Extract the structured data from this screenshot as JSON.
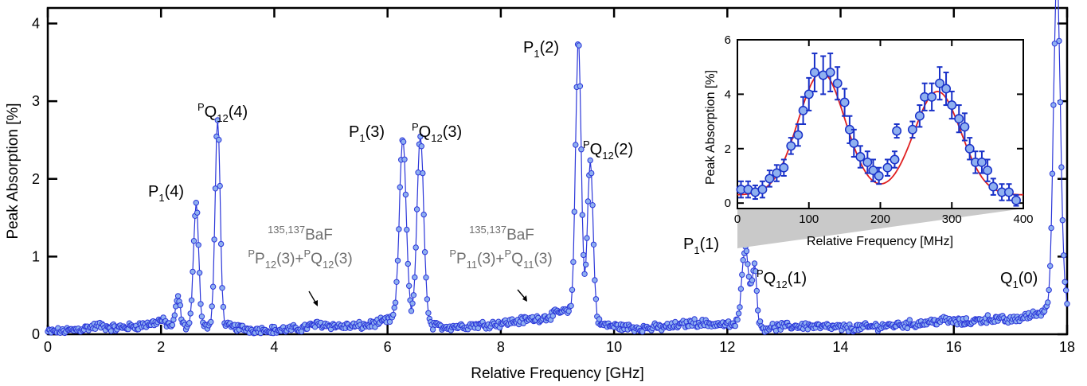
{
  "chart_data": [
    {
      "type": "line",
      "xlabel": "Relative Frequency [GHz]",
      "ylabel": "Peak Absorption [%]",
      "xlim": [
        0,
        18
      ],
      "ylim": [
        0,
        4.2
      ],
      "xticks": [
        "0",
        "2",
        "4",
        "6",
        "8",
        "10",
        "12",
        "14",
        "16",
        "18"
      ],
      "yticks": [
        "0",
        "1",
        "2",
        "3",
        "4"
      ],
      "grid": false,
      "line_color": "#2b36d9",
      "marker_fill": "#8fb0f0",
      "baseline": [
        [
          0.0,
          0.03
        ],
        [
          0.3,
          0.04
        ],
        [
          0.6,
          0.07
        ],
        [
          0.9,
          0.11
        ],
        [
          1.2,
          0.08
        ],
        [
          1.5,
          0.1
        ],
        [
          1.8,
          0.13
        ],
        [
          2.0,
          0.18
        ],
        [
          2.2,
          0.1
        ],
        [
          2.8,
          0.1
        ],
        [
          3.2,
          0.1
        ],
        [
          3.6,
          0.06
        ],
        [
          4.0,
          0.05
        ],
        [
          4.4,
          0.07
        ],
        [
          4.8,
          0.13
        ],
        [
          5.2,
          0.1
        ],
        [
          5.6,
          0.11
        ],
        [
          5.9,
          0.16
        ],
        [
          6.1,
          0.2
        ],
        [
          6.8,
          0.1
        ],
        [
          7.2,
          0.1
        ],
        [
          7.6,
          0.12
        ],
        [
          8.0,
          0.14
        ],
        [
          8.4,
          0.18
        ],
        [
          8.8,
          0.22
        ],
        [
          9.1,
          0.3
        ],
        [
          9.8,
          0.12
        ],
        [
          10.2,
          0.09
        ],
        [
          10.6,
          0.08
        ],
        [
          11.0,
          0.1
        ],
        [
          11.4,
          0.15
        ],
        [
          11.8,
          0.13
        ],
        [
          12.1,
          0.12
        ],
        [
          12.6,
          0.08
        ],
        [
          13.0,
          0.1
        ],
        [
          13.4,
          0.11
        ],
        [
          13.8,
          0.09
        ],
        [
          14.2,
          0.08
        ],
        [
          14.6,
          0.1
        ],
        [
          15.0,
          0.12
        ],
        [
          15.4,
          0.14
        ],
        [
          15.8,
          0.18
        ],
        [
          16.2,
          0.15
        ],
        [
          16.6,
          0.2
        ],
        [
          17.0,
          0.18
        ],
        [
          17.4,
          0.25
        ],
        [
          17.6,
          0.3
        ],
        [
          18.0,
          0.4
        ]
      ],
      "peaks": [
        {
          "x": 2.3,
          "height": 0.38,
          "width": 0.04
        },
        {
          "x": 2.62,
          "height": 1.62,
          "width": 0.045
        },
        {
          "x": 3.0,
          "height": 2.65,
          "width": 0.045
        },
        {
          "x": 6.27,
          "height": 2.35,
          "width": 0.06
        },
        {
          "x": 6.58,
          "height": 2.4,
          "width": 0.06
        },
        {
          "x": 9.37,
          "height": 3.55,
          "width": 0.05
        },
        {
          "x": 9.58,
          "height": 2.05,
          "width": 0.05
        },
        {
          "x": 12.32,
          "height": 1.05,
          "width": 0.06
        },
        {
          "x": 12.48,
          "height": 0.8,
          "width": 0.04
        },
        {
          "x": 17.82,
          "height": 4.3,
          "width": 0.06
        }
      ],
      "annotations": {
        "p1_4": {
          "main": "P",
          "sub": "1",
          "tail": "(4)"
        },
        "pq12_4": {
          "sup": "P",
          "main": "Q",
          "sub": "12",
          "tail": "(4)"
        },
        "p1_3": {
          "main": "P",
          "sub": "1",
          "tail": "(3)"
        },
        "pq12_3": {
          "sup": "P",
          "main": "Q",
          "sub": "12",
          "tail": "(3)"
        },
        "p1_2": {
          "main": "P",
          "sub": "1",
          "tail": "(2)"
        },
        "pq12_2": {
          "sup": "P",
          "main": "Q",
          "sub": "12",
          "tail": "(2)"
        },
        "p1_1": {
          "main": "P",
          "sub": "1",
          "tail": "(1)"
        },
        "pq12_1": {
          "sup": "P",
          "main": "Q",
          "sub": "12",
          "tail": "(1)"
        },
        "q1_0": {
          "main": "Q",
          "sub": "1",
          "tail": "(0)"
        },
        "bafA_iso": {
          "sup": "135,137",
          "main": "BaF"
        },
        "bafA_lines": {
          "sup1": "P",
          "p1": "P",
          "s1": "12",
          "mid": "(3)+",
          "sup2": "P",
          "q2": "Q",
          "s2": "12",
          "tail": "(3)"
        },
        "bafB_iso": {
          "sup": "135,137",
          "main": "BaF"
        },
        "bafB_lines": {
          "sup1": "P",
          "p1": "P",
          "s1": "11",
          "mid": "(3)+",
          "sup2": "P",
          "q2": "Q",
          "s2": "11",
          "tail": "(3)"
        }
      }
    },
    {
      "type": "scatter",
      "xlabel": "Relative Frequency [MHz]",
      "ylabel": "Peak Absorption [%]",
      "xlim": [
        0,
        400
      ],
      "ylim": [
        -0.2,
        6
      ],
      "xticks": [
        "0",
        "100",
        "200",
        "300",
        "400"
      ],
      "yticks": [
        "0",
        "2",
        "4",
        "6"
      ],
      "fit_color": "#e02020",
      "error_color": "#1830c8",
      "marker_fill": "#8fb0f0",
      "points": [
        [
          5,
          0.5,
          0.3
        ],
        [
          15,
          0.5,
          0.3
        ],
        [
          25,
          0.4,
          0.25
        ],
        [
          35,
          0.5,
          0.3
        ],
        [
          45,
          0.9,
          0.3
        ],
        [
          55,
          1.1,
          0.3
        ],
        [
          65,
          1.3,
          0.3
        ],
        [
          75,
          2.1,
          0.3
        ],
        [
          85,
          2.5,
          0.4
        ],
        [
          92,
          3.4,
          0.5
        ],
        [
          100,
          4.0,
          0.6
        ],
        [
          108,
          4.8,
          0.7
        ],
        [
          120,
          4.7,
          0.7
        ],
        [
          130,
          4.8,
          0.7
        ],
        [
          140,
          4.4,
          0.6
        ],
        [
          150,
          3.7,
          0.5
        ],
        [
          157,
          2.7,
          0.5
        ],
        [
          163,
          2.2,
          0.5
        ],
        [
          172,
          1.7,
          0.4
        ],
        [
          182,
          1.5,
          0.4
        ],
        [
          190,
          1.2,
          0.4
        ],
        [
          198,
          1.0,
          0.3
        ],
        [
          210,
          1.3,
          0.3
        ],
        [
          220,
          1.6,
          0.3
        ],
        [
          223,
          2.65,
          0.25
        ],
        [
          245,
          2.7,
          0.3
        ],
        [
          255,
          3.2,
          0.4
        ],
        [
          262,
          3.9,
          0.5
        ],
        [
          272,
          3.9,
          0.5
        ],
        [
          283,
          4.4,
          0.6
        ],
        [
          292,
          4.2,
          0.6
        ],
        [
          300,
          3.6,
          0.5
        ],
        [
          310,
          3.1,
          0.5
        ],
        [
          318,
          2.8,
          0.5
        ],
        [
          325,
          2.0,
          0.4
        ],
        [
          333,
          1.5,
          0.4
        ],
        [
          342,
          1.5,
          0.4
        ],
        [
          350,
          1.2,
          0.4
        ],
        [
          358,
          0.6,
          0.3
        ],
        [
          370,
          0.4,
          0.3
        ],
        [
          380,
          0.4,
          0.3
        ],
        [
          390,
          0.1,
          0.2
        ]
      ],
      "fit": {
        "offset": 0.3,
        "peaks": [
          {
            "center": 118,
            "amplitude": 4.5,
            "sigma": 33
          },
          {
            "center": 280,
            "amplitude": 3.8,
            "sigma": 33
          }
        ]
      }
    }
  ]
}
